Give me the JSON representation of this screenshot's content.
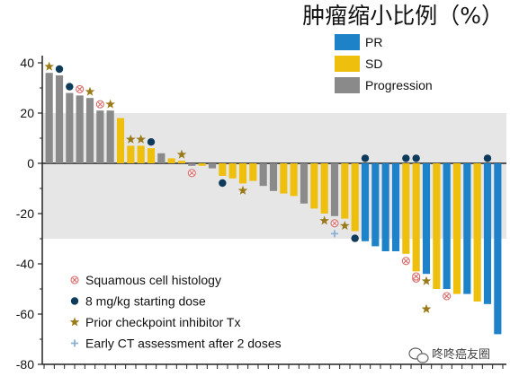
{
  "chart_data": {
    "type": "bar",
    "title": "肿瘤缩小比例（%）",
    "ylim": [
      -80,
      45
    ],
    "yticks": [
      40,
      20,
      0,
      -20,
      -40,
      -60,
      -80
    ],
    "ytick_labels": [
      "40",
      "20",
      "0",
      "-20",
      "-40",
      "-60",
      "-80"
    ],
    "reference_band": [
      -30,
      20
    ],
    "colors": {
      "PR": "#1e82c8",
      "SD": "#eebf0d",
      "Progression": "#8a8a8a",
      "band": "#e6e6e6",
      "dose_dot": "#0e3a5c",
      "star": "#9a7a18",
      "squamous": "#d86a6a",
      "early_ct": "#8ab0d8"
    },
    "legend_items": [
      {
        "key": "PR",
        "label": "PR"
      },
      {
        "key": "SD",
        "label": "SD"
      },
      {
        "key": "Progression",
        "label": "Progression"
      }
    ],
    "marker_legend": [
      {
        "key": "squamous",
        "label": "Squamous cell histology"
      },
      {
        "key": "dose",
        "label": "8 mg/kg starting dose"
      },
      {
        "key": "prior",
        "label": "Prior checkpoint inhibitor Tx"
      },
      {
        "key": "early_ct",
        "label": "Early CT assessment after 2 doses"
      }
    ],
    "bars": [
      {
        "value": 36,
        "status": "Progression",
        "marker": "prior"
      },
      {
        "value": 35,
        "status": "Progression",
        "marker": "dose"
      },
      {
        "value": 28,
        "status": "Progression",
        "marker": "dose"
      },
      {
        "value": 27,
        "status": "Progression",
        "marker": "squamous"
      },
      {
        "value": 26,
        "status": "Progression",
        "marker": "prior"
      },
      {
        "value": 21,
        "status": "Progression",
        "marker": "squamous"
      },
      {
        "value": 21,
        "status": "Progression",
        "marker": "prior"
      },
      {
        "value": 18,
        "status": "SD"
      },
      {
        "value": 7,
        "status": "SD",
        "marker": "prior"
      },
      {
        "value": 7,
        "status": "SD",
        "marker": "prior"
      },
      {
        "value": 6,
        "status": "SD",
        "marker": "dose"
      },
      {
        "value": 4,
        "status": "Progression"
      },
      {
        "value": 2,
        "status": "SD"
      },
      {
        "value": 1,
        "status": "SD",
        "marker": "prior"
      },
      {
        "value": -1,
        "status": "Progression",
        "marker": "squamous"
      },
      {
        "value": -1,
        "status": "SD"
      },
      {
        "value": -2,
        "status": "Progression"
      },
      {
        "value": -5,
        "status": "SD",
        "marker": "dose"
      },
      {
        "value": -6,
        "status": "SD"
      },
      {
        "value": -8,
        "status": "SD",
        "marker": "prior"
      },
      {
        "value": -7,
        "status": "SD"
      },
      {
        "value": -9,
        "status": "Progression"
      },
      {
        "value": -11,
        "status": "Progression"
      },
      {
        "value": -12,
        "status": "SD"
      },
      {
        "value": -13,
        "status": "SD"
      },
      {
        "value": -16,
        "status": "Progression"
      },
      {
        "value": -18,
        "status": "SD"
      },
      {
        "value": -20,
        "status": "SD",
        "marker": "prior"
      },
      {
        "value": -21,
        "status": "Progression",
        "marker": "squamous"
      },
      {
        "value": -22,
        "status": "SD",
        "marker": "prior"
      },
      {
        "value": -27,
        "status": "SD",
        "marker": "dose"
      },
      {
        "value": -31,
        "status": "PR"
      },
      {
        "value": -33,
        "status": "PR"
      },
      {
        "value": -35,
        "status": "PR"
      },
      {
        "value": -35,
        "status": "PR"
      },
      {
        "value": -36,
        "status": "SD",
        "marker": "squamous"
      },
      {
        "value": -43,
        "status": "SD",
        "marker": "squamous"
      },
      {
        "value": -44,
        "status": "PR",
        "marker": "prior"
      },
      {
        "value": -50,
        "status": "SD"
      },
      {
        "value": -50,
        "status": "PR",
        "marker": "squamous"
      },
      {
        "value": -52,
        "status": "SD"
      },
      {
        "value": -52,
        "status": "PR"
      },
      {
        "value": -55,
        "status": "SD"
      },
      {
        "value": -56,
        "status": "PR"
      },
      {
        "value": -68,
        "status": "PR"
      }
    ],
    "extra_markers": [
      {
        "bar": 28,
        "type": "early_ct",
        "value": -28
      },
      {
        "bar": 31,
        "type": "dose",
        "value": 2
      },
      {
        "bar": 35,
        "type": "dose",
        "value": 2
      },
      {
        "bar": 36,
        "type": "dose",
        "value": 2
      },
      {
        "bar": 43,
        "type": "dose",
        "value": 2
      },
      {
        "bar": 36,
        "type": "squamous",
        "value": -45
      },
      {
        "bar": 37,
        "type": "prior",
        "value": -58
      }
    ]
  },
  "watermark": {
    "label": "咚咚癌友圈"
  }
}
